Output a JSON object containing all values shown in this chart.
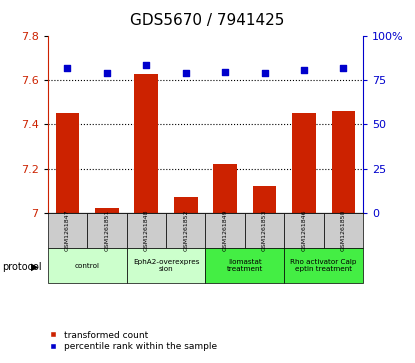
{
  "title": "GDS5670 / 7941425",
  "samples": [
    "GSM1261847",
    "GSM1261851",
    "GSM1261848",
    "GSM1261852",
    "GSM1261849",
    "GSM1261853",
    "GSM1261846",
    "GSM1261850"
  ],
  "transformed_counts": [
    7.45,
    7.02,
    7.63,
    7.07,
    7.22,
    7.12,
    7.45,
    7.46
  ],
  "percentile_ranks": [
    82,
    79,
    84,
    79,
    80,
    79,
    81,
    82
  ],
  "protocols": [
    {
      "label": "control",
      "samples": [
        0,
        1
      ],
      "color": "#ccffcc"
    },
    {
      "label": "EphA2-overexpres\nsion",
      "samples": [
        2,
        3
      ],
      "color": "#ccffcc"
    },
    {
      "label": "Ilomastat\ntreatment",
      "samples": [
        4,
        5
      ],
      "color": "#44ee44"
    },
    {
      "label": "Rho activator Calp\neptin treatment",
      "samples": [
        6,
        7
      ],
      "color": "#44ee44"
    }
  ],
  "bar_color": "#cc2200",
  "dot_color": "#0000cc",
  "ylim_left": [
    7.0,
    7.8
  ],
  "ylim_right": [
    0,
    100
  ],
  "yticks_left": [
    7.0,
    7.2,
    7.4,
    7.6,
    7.8
  ],
  "yticks_right": [
    0,
    25,
    50,
    75,
    100
  ],
  "ylabel_left_color": "#cc2200",
  "ylabel_right_color": "#0000cc",
  "background_color": "#ffffff",
  "sample_bg_color": "#cccccc",
  "bar_width": 0.6
}
